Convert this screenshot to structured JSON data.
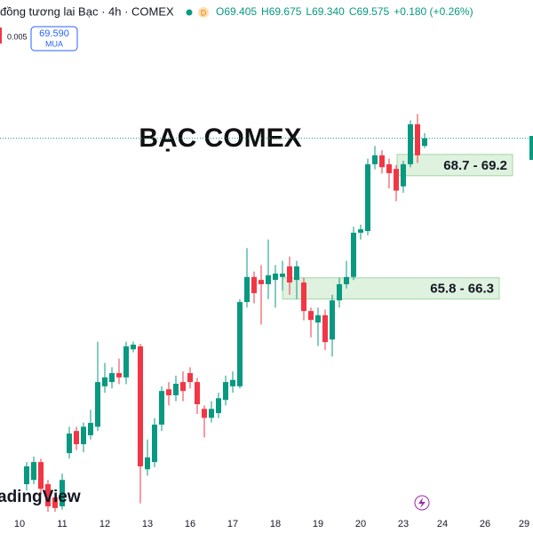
{
  "chart_data": {
    "type": "candlestick",
    "header": {
      "symbol": "đồng tương lai Bạc · 4h · COMEX",
      "ohlc": [
        "O69.405",
        "H69.675",
        "L69.340",
        "C69.575",
        "+0.180 (+0.26%)"
      ],
      "spread": "0.005",
      "buy_price": "69.590",
      "buy_label": "MUA"
    },
    "title": "BẠC COMEX",
    "watermark": "adingView",
    "up_color": "#089981",
    "down_color": "#f23645",
    "zones": [
      {
        "low": 68.7,
        "high": 69.2,
        "label": "68.7 - 69.2"
      },
      {
        "low": 65.8,
        "high": 66.3,
        "label": "65.8 - 66.3"
      }
    ],
    "x": [
      1,
      2,
      3,
      4,
      5,
      6,
      7,
      8,
      9,
      10,
      11,
      12,
      13,
      14,
      15,
      16,
      17,
      18,
      19,
      20,
      21,
      22,
      23,
      24,
      25,
      26,
      27,
      28,
      29,
      30,
      31,
      32,
      33,
      34,
      35,
      36,
      37,
      38,
      39,
      40,
      41,
      42,
      43,
      44,
      45,
      46,
      47,
      48,
      49,
      50,
      51,
      52,
      53,
      54,
      55,
      56,
      57
    ],
    "ohlc": [
      [
        61.45,
        61.97,
        61.3,
        61.87
      ],
      [
        61.55,
        62.1,
        61.45,
        61.97
      ],
      [
        61.97,
        62.05,
        61.2,
        61.34
      ],
      [
        61.45,
        61.55,
        60.8,
        60.93
      ],
      [
        61.14,
        61.25,
        60.8,
        60.89
      ],
      [
        60.93,
        61.7,
        60.85,
        61.55
      ],
      [
        62.18,
        62.8,
        62.05,
        62.64
      ],
      [
        62.7,
        62.8,
        62.25,
        62.39
      ],
      [
        62.39,
        62.9,
        62.2,
        62.8
      ],
      [
        62.6,
        63.2,
        62.5,
        62.89
      ],
      [
        62.8,
        64.8,
        62.7,
        63.85
      ],
      [
        63.75,
        64.3,
        63.6,
        63.96
      ],
      [
        63.85,
        64.2,
        63.7,
        64.06
      ],
      [
        64.06,
        64.4,
        63.8,
        63.96
      ],
      [
        63.96,
        64.8,
        63.8,
        64.69
      ],
      [
        64.62,
        64.8,
        64.55,
        64.73
      ],
      [
        64.69,
        64.75,
        61.0,
        61.87
      ],
      [
        61.8,
        62.5,
        61.65,
        62.08
      ],
      [
        61.97,
        63.0,
        61.85,
        62.85
      ],
      [
        62.85,
        63.75,
        62.7,
        63.64
      ],
      [
        63.68,
        63.85,
        63.3,
        63.54
      ],
      [
        63.54,
        64.0,
        63.4,
        63.81
      ],
      [
        63.85,
        64.1,
        63.4,
        63.64
      ],
      [
        64.06,
        64.2,
        63.7,
        63.85
      ],
      [
        63.85,
        63.95,
        63.1,
        63.33
      ],
      [
        63.22,
        63.3,
        62.55,
        63.01
      ],
      [
        63.01,
        63.4,
        62.9,
        63.22
      ],
      [
        63.12,
        63.6,
        63.0,
        63.47
      ],
      [
        63.43,
        64.0,
        63.3,
        63.85
      ],
      [
        63.75,
        64.1,
        63.6,
        63.9
      ],
      [
        63.75,
        65.8,
        63.7,
        65.73
      ],
      [
        65.73,
        67.0,
        65.6,
        66.32
      ],
      [
        66.32,
        66.45,
        65.7,
        65.94
      ],
      [
        66.25,
        66.6,
        65.2,
        66.15
      ],
      [
        66.15,
        67.2,
        65.8,
        66.36
      ],
      [
        66.25,
        66.6,
        65.6,
        66.4
      ],
      [
        66.32,
        66.7,
        66.0,
        66.4
      ],
      [
        66.57,
        66.8,
        65.9,
        66.19
      ],
      [
        66.25,
        66.7,
        65.8,
        66.57
      ],
      [
        66.19,
        66.3,
        65.3,
        65.52
      ],
      [
        65.52,
        65.6,
        64.9,
        65.31
      ],
      [
        65.25,
        65.6,
        64.7,
        65.42
      ],
      [
        65.42,
        65.55,
        64.6,
        64.79
      ],
      [
        64.85,
        65.9,
        64.45,
        65.77
      ],
      [
        65.77,
        66.3,
        65.6,
        66.15
      ],
      [
        66.15,
        66.7,
        66.05,
        66.32
      ],
      [
        66.32,
        67.5,
        66.25,
        67.36
      ],
      [
        67.36,
        67.55,
        67.2,
        67.44
      ],
      [
        67.4,
        69.1,
        67.3,
        68.97
      ],
      [
        68.97,
        69.4,
        68.85,
        69.18
      ],
      [
        69.18,
        69.3,
        68.75,
        68.9
      ],
      [
        68.97,
        69.1,
        68.4,
        68.76
      ],
      [
        68.86,
        68.95,
        68.1,
        68.35
      ],
      [
        68.45,
        69.05,
        68.3,
        68.97
      ],
      [
        68.97,
        70.0,
        68.9,
        69.91
      ],
      [
        69.91,
        70.15,
        69.0,
        69.18
      ],
      [
        69.4,
        69.7,
        69.35,
        69.58
      ]
    ],
    "xlim": [
      -2.75,
      72.25
    ],
    "xticks": [
      {
        "value": 0,
        "label": "10"
      },
      {
        "value": 6,
        "label": "11"
      },
      {
        "value": 12,
        "label": "12"
      },
      {
        "value": 18,
        "label": "13"
      },
      {
        "value": 24,
        "label": "16"
      },
      {
        "value": 30,
        "label": "17"
      },
      {
        "value": 36,
        "label": "18"
      },
      {
        "value": 42,
        "label": "19"
      },
      {
        "value": 48,
        "label": "20"
      },
      {
        "value": 54,
        "label": "23"
      },
      {
        "value": 59.5,
        "label": "24"
      },
      {
        "value": 65.5,
        "label": "26"
      },
      {
        "value": 71,
        "label": "29"
      }
    ],
    "ylim": [
      60.72,
      72.83
    ]
  }
}
